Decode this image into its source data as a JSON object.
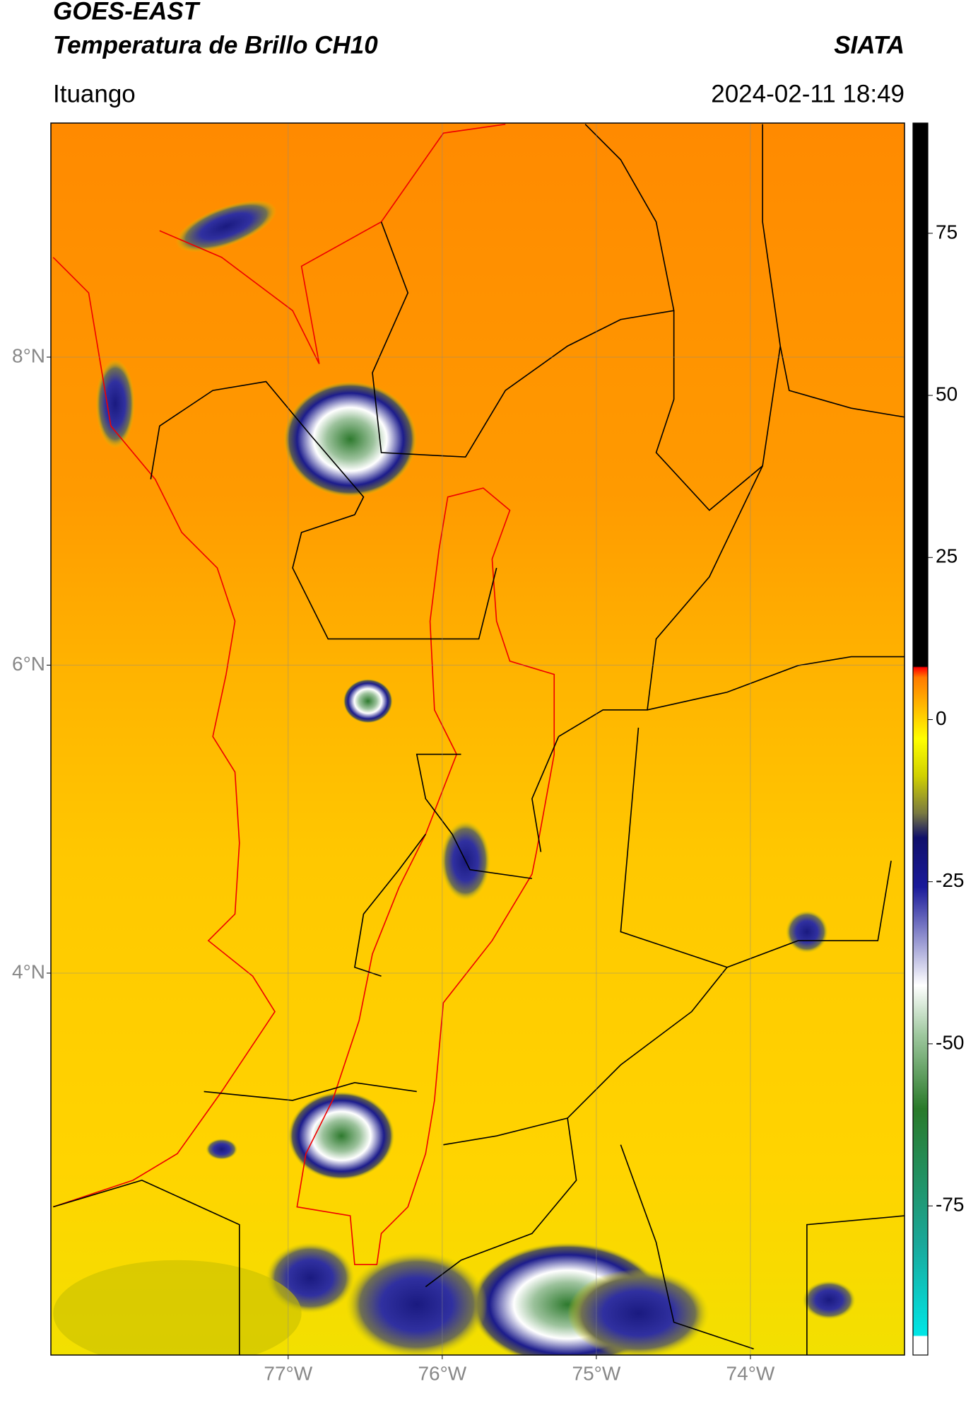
{
  "header": {
    "title": "GOES-EAST",
    "subtitle": "Temperatura de Brillo CH10",
    "source": "SIATA",
    "region": "Ituango",
    "datetime": "2024-02-11 18:49"
  },
  "map": {
    "xlim": [
      -78.54,
      -73.0
    ],
    "ylim": [
      1.52,
      9.52
    ],
    "xticks": [
      {
        "value": -77,
        "label": "77°W"
      },
      {
        "value": -76,
        "label": "76°W"
      },
      {
        "value": -75,
        "label": "75°W"
      },
      {
        "value": -74,
        "label": "74°W"
      }
    ],
    "yticks": [
      {
        "value": 8,
        "label": "8°N"
      },
      {
        "value": 6,
        "label": "6°N"
      },
      {
        "value": 4,
        "label": "4°N"
      }
    ],
    "grid": true
  },
  "colorbar": {
    "lim": [
      -98,
      92
    ],
    "ticks": [
      75,
      50,
      25,
      0,
      -25,
      -50,
      -75
    ]
  }
}
